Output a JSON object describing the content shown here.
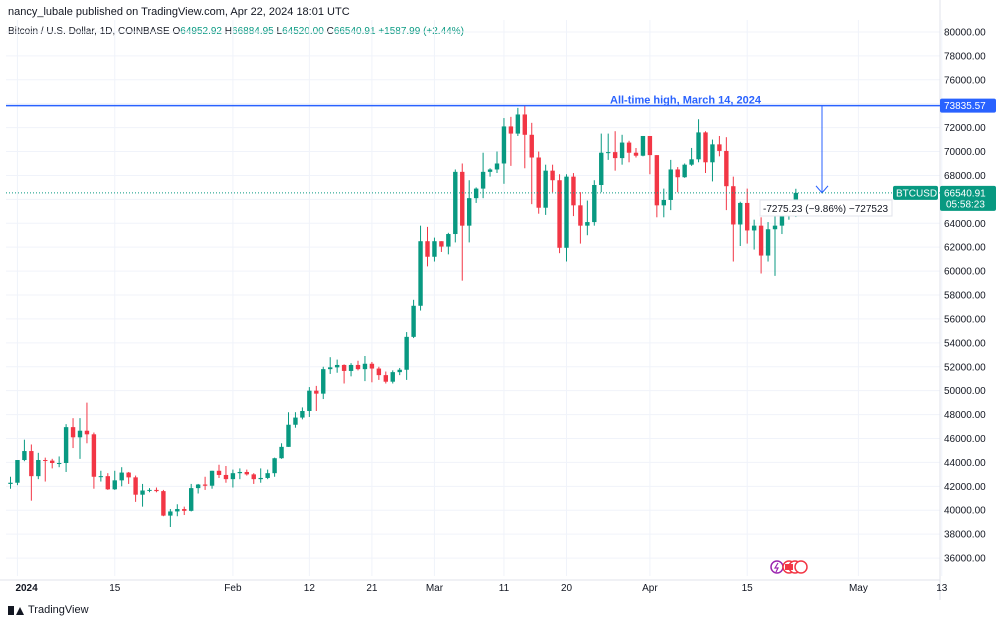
{
  "header": {
    "published": "nancy_lubale published on TradingView.com, Apr 22, 2024 18:01 UTC",
    "symbol": "Bitcoin / U.S. Dollar, 1D, COINBASE",
    "o_label": "O",
    "o_value": "64952.92",
    "h_label": "H",
    "h_value": "66884.95",
    "l_label": "L",
    "l_value": "64520.00",
    "c_label": "C",
    "c_value": "66540.91",
    "change": "+1587.99 (+2.44%)"
  },
  "annotations": {
    "ath_text": "All-time high, March 14, 2024",
    "ath_price": "73835.57",
    "ticker_badge": "BTCUSD",
    "last_price": "66540.91",
    "countdown": "05:58:23",
    "measure_text": "-7275.23 (−9.86%) −727523"
  },
  "footer": {
    "brand": "TradingView"
  },
  "colors": {
    "up": "#089981",
    "down": "#f23645",
    "line": "#2962ff"
  },
  "chart_data": {
    "type": "candlestick",
    "series_name": "BTCUSD",
    "ylim": [
      34500,
      81000
    ],
    "y_ticks": [
      36000,
      38000,
      40000,
      42000,
      44000,
      46000,
      48000,
      50000,
      52000,
      54000,
      56000,
      58000,
      60000,
      62000,
      64000,
      66000,
      68000,
      70000,
      72000,
      74000,
      76000,
      78000,
      80000
    ],
    "y_tick_labels": [
      "36000.00",
      "38000.00",
      "40000.00",
      "42000.00",
      "44000.00",
      "46000.00",
      "48000.00",
      "50000.00",
      "52000.00",
      "54000.00",
      "56000.00",
      "58000.00",
      "60000.00",
      "62000.00",
      "64000.00",
      "66000.00",
      "68000.00",
      "70000.00",
      "72000.00",
      "74000.00",
      "76000.00",
      "78000.00",
      "80000.00"
    ],
    "x_ticks": [
      {
        "label": "2024",
        "date": "2024-01-01",
        "bold": true
      },
      {
        "label": "15",
        "date": "2024-01-15"
      },
      {
        "label": "Feb",
        "date": "2024-02-01"
      },
      {
        "label": "12",
        "date": "2024-02-12"
      },
      {
        "label": "21",
        "date": "2024-02-21"
      },
      {
        "label": "Mar",
        "date": "2024-03-01"
      },
      {
        "label": "11",
        "date": "2024-03-11"
      },
      {
        "label": "20",
        "date": "2024-03-20"
      },
      {
        "label": "Apr",
        "date": "2024-04-01"
      },
      {
        "label": "15",
        "date": "2024-04-15"
      },
      {
        "label": "May",
        "date": "2024-05-01"
      },
      {
        "label": "13",
        "date": "2024-05-13"
      }
    ],
    "horizontal_line": 73835.57,
    "last_price": 66540.91,
    "x_start": "2023-12-31",
    "candles": [
      [
        "2023-12-31",
        42200,
        42800,
        41800,
        42300
      ],
      [
        "2024-01-01",
        42300,
        44200,
        42100,
        44200
      ],
      [
        "2024-01-02",
        44200,
        45900,
        44100,
        44950
      ],
      [
        "2024-01-03",
        44950,
        45500,
        40800,
        42850
      ],
      [
        "2024-01-04",
        42850,
        44800,
        42600,
        44200
      ],
      [
        "2024-01-05",
        44200,
        44400,
        42400,
        44150
      ],
      [
        "2024-01-06",
        44150,
        44300,
        43500,
        43950
      ],
      [
        "2024-01-07",
        43950,
        44500,
        43600,
        43950
      ],
      [
        "2024-01-08",
        43950,
        47200,
        43200,
        46950
      ],
      [
        "2024-01-09",
        46950,
        47700,
        45200,
        46100
      ],
      [
        "2024-01-10",
        46100,
        47700,
        44300,
        46650
      ],
      [
        "2024-01-11",
        46650,
        49000,
        45600,
        46350
      ],
      [
        "2024-01-12",
        46350,
        46500,
        41800,
        42800
      ],
      [
        "2024-01-13",
        42800,
        43300,
        42400,
        42850
      ],
      [
        "2024-01-14",
        42850,
        43100,
        41700,
        41750
      ],
      [
        "2024-01-15",
        41750,
        43300,
        41700,
        42500
      ],
      [
        "2024-01-16",
        42500,
        43600,
        42000,
        43150
      ],
      [
        "2024-01-17",
        43150,
        43200,
        42200,
        42750
      ],
      [
        "2024-01-18",
        42750,
        42900,
        40700,
        41300
      ],
      [
        "2024-01-19",
        41300,
        42200,
        40300,
        41650
      ],
      [
        "2024-01-20",
        41650,
        41850,
        41500,
        41700
      ],
      [
        "2024-01-21",
        41700,
        41900,
        41500,
        41600
      ],
      [
        "2024-01-22",
        41600,
        41700,
        39500,
        39550
      ],
      [
        "2024-01-23",
        39550,
        40100,
        38600,
        39900
      ],
      [
        "2024-01-24",
        39900,
        40500,
        39500,
        40100
      ],
      [
        "2024-01-25",
        40100,
        40300,
        39600,
        39950
      ],
      [
        "2024-01-26",
        39950,
        42200,
        39900,
        41850
      ],
      [
        "2024-01-27",
        41850,
        42200,
        41400,
        42150
      ],
      [
        "2024-01-28",
        42150,
        42800,
        41700,
        42050
      ],
      [
        "2024-01-29",
        42050,
        43300,
        41800,
        43300
      ],
      [
        "2024-01-30",
        43300,
        43800,
        42700,
        42950
      ],
      [
        "2024-01-31",
        42950,
        43700,
        42300,
        42600
      ],
      [
        "2024-02-01",
        42600,
        43400,
        41900,
        43100
      ],
      [
        "2024-02-02",
        43100,
        43500,
        42600,
        43200
      ],
      [
        "2024-02-03",
        43200,
        43400,
        42900,
        43000
      ],
      [
        "2024-02-04",
        43000,
        43100,
        42200,
        42600
      ],
      [
        "2024-02-05",
        42600,
        43500,
        42300,
        42700
      ],
      [
        "2024-02-06",
        42700,
        43400,
        42600,
        43100
      ],
      [
        "2024-02-07",
        43100,
        44400,
        42800,
        44350
      ],
      [
        "2024-02-08",
        44350,
        45600,
        44300,
        45300
      ],
      [
        "2024-02-09",
        45300,
        48200,
        45300,
        47150
      ],
      [
        "2024-02-10",
        47150,
        48200,
        46900,
        47750
      ],
      [
        "2024-02-11",
        47750,
        48600,
        47600,
        48300
      ],
      [
        "2024-02-12",
        48300,
        50300,
        47800,
        50000
      ],
      [
        "2024-02-13",
        50000,
        50400,
        48300,
        49750
      ],
      [
        "2024-02-14",
        49750,
        52000,
        49300,
        51800
      ],
      [
        "2024-02-15",
        51800,
        52800,
        51400,
        51950
      ],
      [
        "2024-02-16",
        51950,
        52600,
        51500,
        52150
      ],
      [
        "2024-02-17",
        52150,
        52200,
        50600,
        51650
      ],
      [
        "2024-02-18",
        51650,
        52300,
        51200,
        52150
      ],
      [
        "2024-02-19",
        52150,
        52500,
        51700,
        51800
      ],
      [
        "2024-02-20",
        51800,
        52900,
        50800,
        52250
      ],
      [
        "2024-02-21",
        52250,
        52400,
        50700,
        51850
      ],
      [
        "2024-02-22",
        51850,
        52000,
        50900,
        51300
      ],
      [
        "2024-02-23",
        51300,
        51600,
        50600,
        50750
      ],
      [
        "2024-02-24",
        50750,
        51700,
        50600,
        51550
      ],
      [
        "2024-02-25",
        51550,
        51900,
        51300,
        51750
      ],
      [
        "2024-02-26",
        51750,
        54900,
        50900,
        54500
      ],
      [
        "2024-02-27",
        54500,
        57600,
        54400,
        57100
      ],
      [
        "2024-02-28",
        57100,
        63800,
        56700,
        62500
      ],
      [
        "2024-02-29",
        62500,
        63700,
        60400,
        61200
      ],
      [
        "2024-03-01",
        61200,
        62800,
        60800,
        62500
      ],
      [
        "2024-03-02",
        62500,
        62500,
        61600,
        62050
      ],
      [
        "2024-03-03",
        62050,
        63200,
        61400,
        63100
      ],
      [
        "2024-03-04",
        63100,
        68500,
        62400,
        68300
      ],
      [
        "2024-03-05",
        68300,
        69000,
        59200,
        63800
      ],
      [
        "2024-03-06",
        63800,
        67600,
        62400,
        66100
      ],
      [
        "2024-03-07",
        66100,
        67000,
        65700,
        66900
      ],
      [
        "2024-03-08",
        66900,
        69900,
        66100,
        68300
      ],
      [
        "2024-03-09",
        68300,
        68600,
        67900,
        68500
      ],
      [
        "2024-03-10",
        68500,
        70000,
        68200,
        69000
      ],
      [
        "2024-03-11",
        69000,
        72800,
        67300,
        72100
      ],
      [
        "2024-03-12",
        72100,
        72900,
        68800,
        71500
      ],
      [
        "2024-03-13",
        71500,
        73650,
        71300,
        73100
      ],
      [
        "2024-03-14",
        73100,
        73835,
        68600,
        71400
      ],
      [
        "2024-03-15",
        71400,
        72400,
        65600,
        69500
      ],
      [
        "2024-03-16",
        69500,
        70000,
        64800,
        65300
      ],
      [
        "2024-03-17",
        65300,
        68900,
        64700,
        68400
      ],
      [
        "2024-03-18",
        68400,
        68900,
        66600,
        67600
      ],
      [
        "2024-03-19",
        67600,
        68100,
        61500,
        61950
      ],
      [
        "2024-03-20",
        61950,
        68100,
        60800,
        67900
      ],
      [
        "2024-03-21",
        67900,
        68200,
        64600,
        65500
      ],
      [
        "2024-03-22",
        65500,
        66600,
        62300,
        63800
      ],
      [
        "2024-03-23",
        63800,
        65900,
        63000,
        64100
      ],
      [
        "2024-03-24",
        64100,
        67600,
        63800,
        67200
      ],
      [
        "2024-03-25",
        67200,
        71500,
        66600,
        69900
      ],
      [
        "2024-03-26",
        69900,
        71500,
        69300,
        69950
      ],
      [
        "2024-03-27",
        69950,
        71700,
        68400,
        69450
      ],
      [
        "2024-03-28",
        69450,
        71400,
        68900,
        70750
      ],
      [
        "2024-03-29",
        70750,
        70900,
        69100,
        69900
      ],
      [
        "2024-03-30",
        69900,
        70300,
        69500,
        69650
      ],
      [
        "2024-03-31",
        69650,
        71300,
        69600,
        71300
      ],
      [
        "2024-04-01",
        71300,
        71300,
        68100,
        69700
      ],
      [
        "2024-04-02",
        69700,
        69700,
        64500,
        65500
      ],
      [
        "2024-04-03",
        65500,
        66900,
        64500,
        65950
      ],
      [
        "2024-04-04",
        65950,
        69300,
        65100,
        68500
      ],
      [
        "2024-04-05",
        68500,
        68700,
        66600,
        67850
      ],
      [
        "2024-04-06",
        67850,
        69000,
        67800,
        68900
      ],
      [
        "2024-04-07",
        68900,
        70300,
        68800,
        69350
      ],
      [
        "2024-04-08",
        69350,
        72700,
        69100,
        71600
      ],
      [
        "2024-04-09",
        71600,
        71700,
        68200,
        69100
      ],
      [
        "2024-04-10",
        69100,
        71000,
        67500,
        70600
      ],
      [
        "2024-04-11",
        70600,
        71300,
        69600,
        70050
      ],
      [
        "2024-04-12",
        70050,
        71200,
        65100,
        67100
      ],
      [
        "2024-04-13",
        67100,
        67900,
        60800,
        63900
      ],
      [
        "2024-04-14",
        63900,
        65800,
        62100,
        65700
      ],
      [
        "2024-04-15",
        65700,
        66900,
        62300,
        63400
      ],
      [
        "2024-04-16",
        63400,
        64300,
        61800,
        63800
      ],
      [
        "2024-04-17",
        63800,
        64500,
        59800,
        61300
      ],
      [
        "2024-04-18",
        61300,
        64100,
        60800,
        63500
      ],
      [
        "2024-04-19",
        63500,
        65500,
        59600,
        63800
      ],
      [
        "2024-04-20",
        63800,
        65400,
        63100,
        64950
      ],
      [
        "2024-04-21",
        64950,
        65700,
        64300,
        64950
      ],
      [
        "2024-04-22",
        64952.92,
        66884.95,
        64520.0,
        66540.91
      ]
    ]
  }
}
